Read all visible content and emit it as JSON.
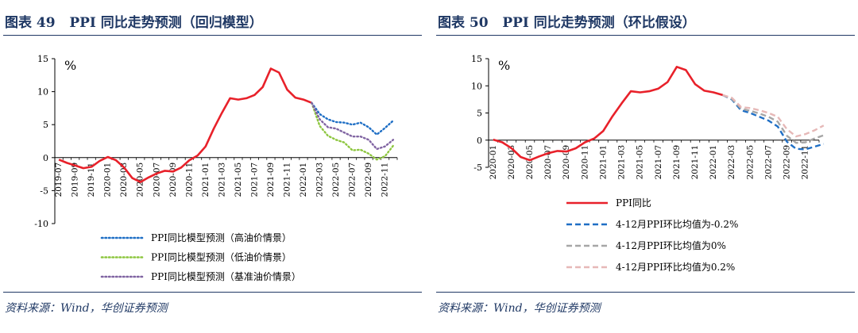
{
  "panels": [
    {
      "title_prefix": "图表 49",
      "title_text": "PPI 同比走势预测（回归模型）",
      "source": "资料来源：Wind，华创证券预测"
    },
    {
      "title_prefix": "图表 50",
      "title_text": "PPI 同比走势预测（环比假设）",
      "source": "资料来源：Wind，华创证券预测"
    }
  ],
  "chart_data": [
    {
      "type": "line",
      "title": "PPI 同比走势预测（回归模型）",
      "ylabel": "%",
      "ylim": [
        -10,
        15
      ],
      "yticks": [
        "-10",
        "-5",
        "0",
        "5",
        "10",
        "15"
      ],
      "tick_labels": [
        "2019-07",
        "2019-09",
        "2019-11",
        "2020-01",
        "2020-03",
        "2020-05",
        "2020-07",
        "2020-09",
        "2020-11",
        "2021-01",
        "2021-03",
        "2021-05",
        "2021-07",
        "2021-09",
        "2021-11",
        "2022-01",
        "2022-03",
        "2022-05",
        "2022-07",
        "2022-09",
        "2022-11"
      ],
      "series": [
        {
          "name": "PPI同比",
          "color": "#e8212a",
          "style": "solid",
          "in_legend": false,
          "start": 0,
          "values": [
            -0.3,
            -0.8,
            -1.2,
            -1.6,
            -1.4,
            -0.5,
            0.1,
            -0.4,
            -1.5,
            -3.1,
            -3.7,
            -3.0,
            -2.4,
            -2.0,
            -2.1,
            -1.5,
            -0.4,
            0.3,
            1.7,
            4.4,
            6.8,
            9.0,
            8.8,
            9.0,
            9.5,
            10.7,
            13.5,
            12.9,
            10.3,
            9.1,
            8.8,
            8.3
          ]
        },
        {
          "name": "PPI同比模型预测（高油价情景）",
          "color": "#1f6fc5",
          "style": "dotted",
          "in_legend": true,
          "start": 31,
          "values": [
            8.3,
            6.6,
            5.8,
            5.4,
            5.3,
            5.0,
            5.3,
            4.6,
            3.5,
            4.5,
            5.6
          ]
        },
        {
          "name": "PPI同比模型预测（低油价情景）",
          "color": "#8dc63f",
          "style": "dotted",
          "in_legend": true,
          "start": 31,
          "values": [
            8.3,
            4.8,
            3.3,
            2.7,
            2.3,
            1.1,
            1.2,
            0.6,
            -0.3,
            0.2,
            1.8
          ]
        },
        {
          "name": "PPI同比模型预测（基准油价情景）",
          "color": "#8064a2",
          "style": "dotted",
          "in_legend": true,
          "start": 31,
          "values": [
            8.3,
            5.8,
            4.6,
            4.4,
            3.8,
            3.2,
            3.2,
            2.7,
            1.3,
            1.7,
            2.7
          ]
        }
      ]
    },
    {
      "type": "line",
      "title": "PPI 同比走势预测（环比假设）",
      "ylabel": "%",
      "ylim": [
        -5,
        15
      ],
      "yticks": [
        "-5",
        "0",
        "5",
        "10",
        "15"
      ],
      "tick_labels": [
        "2020-01",
        "2020-03",
        "2020-05",
        "2020-07",
        "2020-09",
        "2020-11",
        "2021-01",
        "2021-03",
        "2021-05",
        "2021-07",
        "2021-09",
        "2021-11",
        "2022-01",
        "2022-03",
        "2022-05",
        "2022-07",
        "2022-09",
        "2022-11"
      ],
      "series": [
        {
          "name": "PPI同比",
          "color": "#e8212a",
          "style": "solid",
          "in_legend": true,
          "start": 0,
          "values": [
            0.1,
            -0.4,
            -1.5,
            -3.1,
            -3.7,
            -3.0,
            -2.4,
            -2.0,
            -2.1,
            -1.5,
            -0.4,
            0.3,
            1.7,
            4.4,
            6.8,
            9.0,
            8.8,
            9.0,
            9.5,
            10.7,
            13.5,
            12.9,
            10.3,
            9.1,
            8.8,
            8.3
          ]
        },
        {
          "name": "4-12月PPI环比均值为-0.2%",
          "color": "#1f6fc5",
          "style": "dashed",
          "in_legend": true,
          "start": 25,
          "values": [
            8.3,
            7.5,
            5.5,
            5.0,
            4.3,
            3.6,
            2.5,
            -0.3,
            -1.6,
            -1.7,
            -1.2,
            -0.7
          ]
        },
        {
          "name": "4-12月PPI环比均值为0%",
          "color": "#a6a6a6",
          "style": "dashed",
          "in_legend": true,
          "start": 25,
          "values": [
            8.3,
            7.6,
            5.8,
            5.4,
            4.9,
            4.3,
            3.4,
            0.8,
            -0.5,
            -0.4,
            0.3,
            0.9
          ]
        },
        {
          "name": "4-12月PPI环比均值为0.2%",
          "color": "#e6b8b7",
          "style": "dashed",
          "in_legend": true,
          "start": 25,
          "values": [
            8.3,
            7.8,
            6.1,
            5.9,
            5.5,
            5.0,
            4.3,
            2.0,
            0.7,
            1.1,
            1.8,
            2.7
          ]
        }
      ]
    }
  ]
}
